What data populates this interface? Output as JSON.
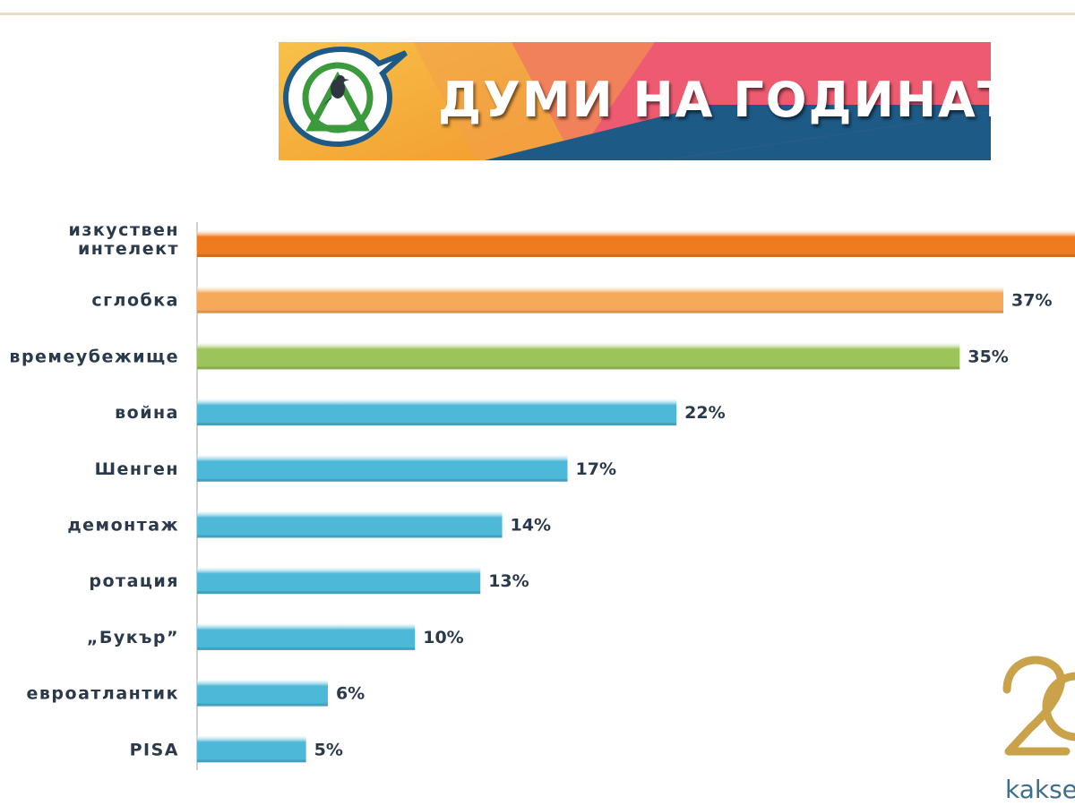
{
  "banner": {
    "title": "ДУМИ НА ГОДИНАТА"
  },
  "corner": {
    "text": "kakse"
  },
  "colors": {
    "top": "#f07b1e",
    "second": "#f7a95a",
    "third": "#9dc45a",
    "rest": "#4db8d8",
    "banner_pink": "#ee5b70",
    "banner_blue": "#1e5a86",
    "banner_yellow": "#f6b233",
    "corner_gold": "#c9a24a"
  },
  "chart_data": {
    "type": "bar",
    "orientation": "horizontal",
    "categories": [
      "изкуствен интелект",
      "сглобка",
      "времеубежище",
      "война",
      "Шенген",
      "демонтаж",
      "ротация",
      "„Букър”",
      "евроатлантик",
      "PISA"
    ],
    "values": [
      null,
      37,
      35,
      22,
      17,
      14,
      13,
      10,
      6,
      5
    ],
    "value_labels": [
      "",
      "37%",
      "35%",
      "22%",
      "17%",
      "14%",
      "13%",
      "10%",
      "6%",
      "5%"
    ],
    "xlim": [
      0,
      37
    ],
    "grid": false,
    "legend": "none"
  }
}
